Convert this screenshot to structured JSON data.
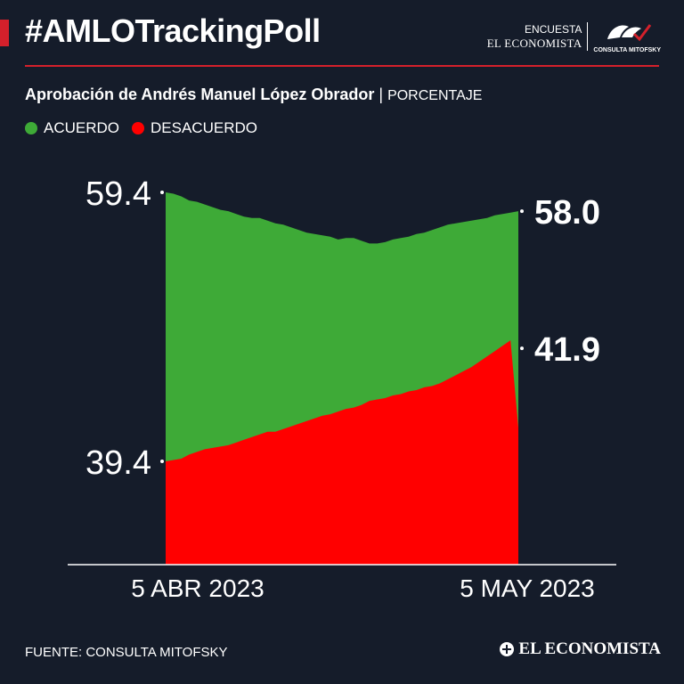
{
  "header": {
    "hashtag": "#AMLOTrackingPoll",
    "survey_label": "ENCUESTA",
    "publisher": "EL ECONOMISTA",
    "partner_logo_text": "CONSULTA MITOFSKY"
  },
  "subtitle": {
    "title": "Aprobación de Andrés Manuel López Obrador",
    "separator": " | ",
    "unit": "PORCENTAJE"
  },
  "footer": {
    "source": "FUENTE: CONSULTA MITOFSKY",
    "brand": "EL ECONOMISTA"
  },
  "colors": {
    "background": "#151c2a",
    "accent": "#d4202b",
    "acuerdo": "#3eaa37",
    "desacuerdo": "#ff0000"
  },
  "chart_data": {
    "type": "area",
    "x_start_label": "5  ABR 2023",
    "x_end_label": "5 MAY 2023",
    "start_labels": [
      "59.4",
      "39.4"
    ],
    "end_labels": [
      "58.0",
      "41.9"
    ],
    "series": [
      {
        "name": "ACUERDO",
        "color": "#3eaa37",
        "values": [
          59.4,
          59.3,
          59.1,
          58.8,
          58.7,
          58.5,
          58.3,
          58.1,
          58.0,
          57.8,
          57.6,
          57.5,
          57.5,
          57.3,
          57.1,
          57.0,
          56.8,
          56.6,
          56.4,
          56.3,
          56.2,
          56.1,
          55.9,
          56.0,
          56.0,
          55.8,
          55.6,
          55.6,
          55.7,
          55.9,
          56.0,
          56.1,
          56.3,
          56.4,
          56.6,
          56.8,
          57.0,
          57.1,
          57.2,
          57.3,
          57.4,
          57.5,
          57.7,
          57.8,
          57.9,
          58.0
        ]
      },
      {
        "name": "DESACUERDO",
        "color": "#ff0000",
        "values": [
          39.4,
          39.5,
          39.6,
          39.9,
          40.1,
          40.3,
          40.4,
          40.5,
          40.6,
          40.8,
          41.0,
          41.2,
          41.4,
          41.6,
          41.6,
          41.8,
          42.0,
          42.2,
          42.4,
          42.6,
          42.8,
          42.9,
          43.1,
          43.3,
          43.4,
          43.6,
          43.9,
          44.0,
          44.1,
          44.3,
          44.4,
          44.6,
          44.7,
          44.9,
          45.0,
          45.2,
          45.5,
          45.8,
          46.1,
          46.4,
          46.8,
          47.2,
          47.6,
          48.0,
          48.4,
          41.9
        ]
      }
    ]
  }
}
